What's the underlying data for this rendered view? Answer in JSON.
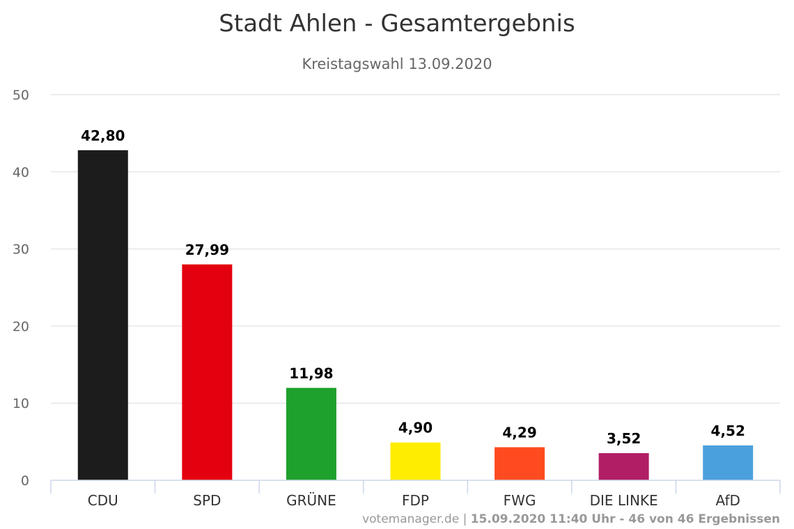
{
  "chart_data": {
    "type": "bar",
    "title": "Stadt Ahlen - Gesamtergebnis",
    "subtitle": "Kreistagswahl 13.09.2020",
    "categories": [
      "CDU",
      "SPD",
      "GRÜNE",
      "FDP",
      "FWG",
      "DIE LINKE",
      "AfD"
    ],
    "values": [
      42.8,
      27.99,
      11.98,
      4.9,
      4.29,
      3.52,
      4.52
    ],
    "value_labels": [
      "42,80",
      "27,99",
      "11,98",
      "4,90",
      "4,29",
      "3,52",
      "4,52"
    ],
    "colors": [
      "#1c1c1c",
      "#e3000f",
      "#1fa12d",
      "#ffed00",
      "#ff4b1f",
      "#b01e65",
      "#4aa0dd"
    ],
    "ylim": [
      0,
      50
    ],
    "yticks": [
      0,
      10,
      20,
      30,
      40,
      50
    ],
    "grid": true,
    "xlabel": "",
    "ylabel": ""
  },
  "credits": {
    "source": "votemanager.de",
    "separator": " | ",
    "detail": "15.09.2020 11:40 Uhr - 46 von 46 Ergebnissen"
  }
}
